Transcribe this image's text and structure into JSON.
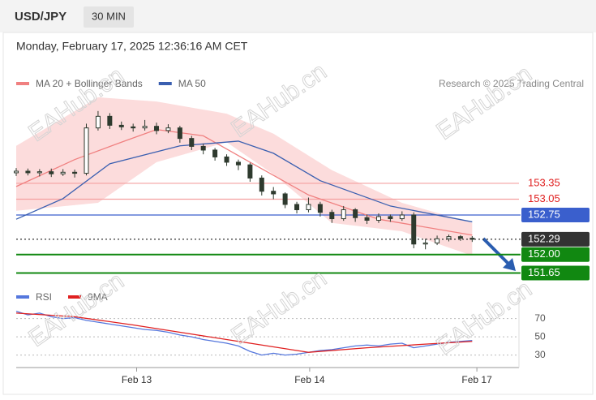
{
  "header": {
    "symbol": "USD/JPY",
    "timeframe": "30 MIN",
    "datetime": "Monday, February 17, 2025 12:36:16 AM CET"
  },
  "credit": "Research © 2025 Trading Central",
  "watermark": "EAHub.cn",
  "chart_data": [
    {
      "type": "candlestick",
      "x": [
        0,
        1,
        2,
        3,
        4,
        5,
        6,
        7,
        8,
        9,
        10,
        11,
        12,
        13,
        14,
        15,
        16,
        17,
        18,
        19,
        20,
        21,
        22,
        23,
        24,
        25,
        26,
        27,
        28,
        29,
        30,
        31,
        32,
        33,
        34,
        35,
        36,
        37,
        38,
        39
      ],
      "open": [
        153.55,
        153.58,
        153.55,
        153.57,
        153.53,
        153.56,
        153.54,
        154.4,
        154.62,
        154.45,
        154.42,
        154.4,
        154.43,
        154.35,
        154.4,
        154.2,
        154.05,
        153.98,
        153.85,
        153.75,
        153.7,
        153.45,
        153.2,
        153.15,
        152.95,
        152.85,
        152.95,
        152.8,
        152.68,
        152.85,
        152.7,
        152.65,
        152.72,
        152.68,
        152.75,
        152.2,
        152.22,
        152.3,
        152.34,
        152.31
      ],
      "high": [
        153.64,
        153.63,
        153.62,
        153.63,
        153.62,
        153.61,
        154.48,
        154.72,
        154.68,
        154.52,
        154.48,
        154.55,
        154.5,
        154.47,
        154.44,
        154.25,
        154.1,
        154.02,
        153.9,
        153.8,
        153.74,
        153.5,
        153.28,
        153.18,
        153.0,
        153.08,
        153.0,
        152.85,
        152.92,
        152.88,
        152.76,
        152.78,
        152.76,
        152.82,
        152.8,
        152.3,
        152.36,
        152.38,
        152.37,
        152.35
      ],
      "low": [
        153.49,
        153.5,
        153.48,
        153.47,
        153.49,
        153.46,
        153.5,
        154.35,
        154.38,
        154.36,
        154.33,
        154.35,
        154.28,
        154.3,
        154.12,
        153.98,
        153.9,
        153.78,
        153.68,
        153.6,
        153.38,
        153.12,
        153.05,
        152.88,
        152.78,
        152.8,
        152.72,
        152.6,
        152.64,
        152.62,
        152.58,
        152.6,
        152.62,
        152.64,
        152.12,
        152.1,
        152.18,
        152.25,
        152.26,
        152.24
      ],
      "close": [
        153.58,
        153.55,
        153.57,
        153.53,
        153.56,
        153.54,
        154.4,
        154.62,
        154.45,
        154.42,
        154.4,
        154.43,
        154.35,
        154.4,
        154.2,
        154.05,
        153.98,
        153.85,
        153.75,
        153.7,
        153.45,
        153.2,
        153.15,
        152.95,
        152.85,
        152.95,
        152.8,
        152.68,
        152.85,
        152.7,
        152.65,
        152.72,
        152.68,
        152.75,
        152.2,
        152.22,
        152.3,
        152.34,
        152.31,
        152.29
      ],
      "color": "#2e3a2e",
      "xlim": [
        0,
        43
      ],
      "ylim": [
        151.52,
        155.44
      ],
      "bands": {
        "name": "MA 20 + Bollinger Bands",
        "color": "#f08080",
        "fill": "#fbd3d3",
        "x": [
          0,
          7,
          12,
          18,
          22,
          27,
          33,
          39
        ],
        "upper": [
          154.06,
          154.98,
          154.9,
          154.67,
          154.29,
          153.6,
          152.98,
          152.6
        ],
        "lower": [
          152.83,
          152.98,
          153.75,
          154.13,
          153.52,
          152.6,
          152.44,
          151.98
        ]
      },
      "series": [
        {
          "name": "MA 20 + Bollinger Bands",
          "color": "#f08080",
          "x": [
            0,
            5,
            9,
            12,
            16,
            20,
            25,
            31,
            39
          ],
          "values": [
            153.29,
            153.8,
            154.13,
            154.37,
            154.25,
            153.75,
            153.13,
            152.67,
            152.37
          ]
        },
        {
          "name": "MA 50",
          "color": "#3a5fb0",
          "x": [
            0,
            4,
            8,
            14,
            19,
            22,
            26,
            32,
            39
          ],
          "values": [
            152.67,
            153.06,
            153.72,
            154.06,
            154.15,
            153.92,
            153.4,
            152.92,
            152.62
          ]
        }
      ],
      "levels": [
        {
          "value": 153.35,
          "label": "153.35",
          "color": "#f4a0a0",
          "text_color": "#e02020",
          "style": "solid",
          "boxed": false
        },
        {
          "value": 153.05,
          "label": "153.05",
          "color": "#f4a0a0",
          "text_color": "#e02020",
          "style": "solid",
          "boxed": false
        },
        {
          "value": 152.75,
          "label": "152.75",
          "color": "#3a5fcd",
          "text_color": "#ffffff",
          "style": "solid",
          "boxed": true
        },
        {
          "value": 152.29,
          "label": "152.29",
          "color": "#333333",
          "text_color": "#ffffff",
          "style": "dotted",
          "boxed": true
        },
        {
          "value": 152.0,
          "label": "152.00",
          "color": "#118811",
          "text_color": "#ffffff",
          "style": "thick",
          "boxed": true
        },
        {
          "value": 151.65,
          "label": "151.65",
          "color": "#118811",
          "text_color": "#ffffff",
          "style": "thick",
          "boxed": true
        }
      ]
    },
    {
      "type": "line",
      "xlim": [
        0,
        43
      ],
      "ylim": [
        19,
        99
      ],
      "xticks": [
        {
          "value": 10.3,
          "label": "Feb 13"
        },
        {
          "value": 25.1,
          "label": "Feb 14"
        },
        {
          "value": 39.4,
          "label": "Feb 17"
        }
      ],
      "yticks": [
        30,
        50,
        70
      ],
      "series": [
        {
          "name": "RSI",
          "color": "#5577dd",
          "x": [
            0,
            1,
            2,
            3,
            4,
            5,
            6,
            7,
            8,
            9,
            10,
            11,
            12,
            13,
            14,
            15,
            16,
            17,
            18,
            19,
            20,
            21,
            22,
            23,
            24,
            25,
            26,
            27,
            28,
            29,
            30,
            31,
            32,
            33,
            34,
            35,
            36,
            37,
            38,
            39
          ],
          "values": [
            78,
            74,
            76,
            72,
            70,
            71,
            68,
            66,
            64,
            62,
            60,
            58,
            57,
            55,
            52,
            50,
            47,
            45,
            43,
            40,
            34,
            30,
            32,
            30,
            31,
            33,
            35,
            36,
            38,
            40,
            41,
            40,
            42,
            43,
            38,
            40,
            42,
            44,
            45,
            46
          ]
        },
        {
          "name": "9MA",
          "color": "#e02020",
          "x": [
            0,
            5,
            10,
            15,
            20,
            25,
            30,
            35,
            39
          ],
          "values": [
            76,
            72,
            63,
            53,
            43,
            33,
            38,
            42,
            45
          ]
        }
      ]
    }
  ]
}
